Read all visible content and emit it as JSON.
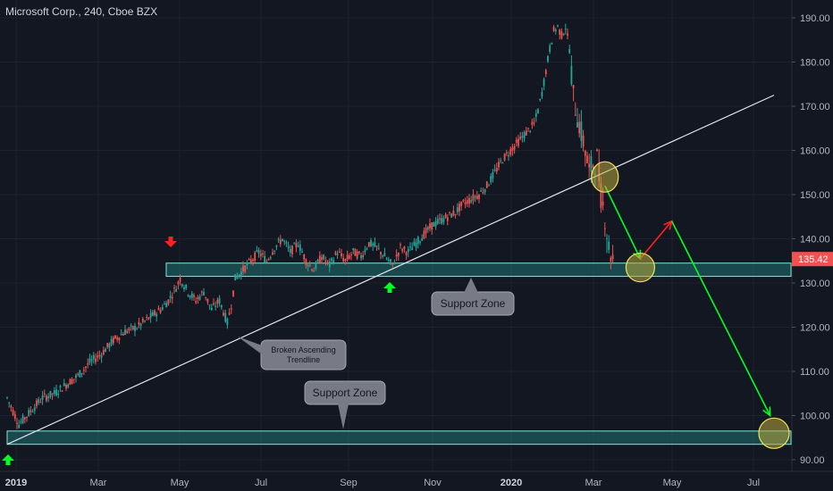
{
  "chart_data": {
    "type": "candlestick",
    "title": "Microsoft Corp., 240, Cboe BZX",
    "ylim": [
      87,
      193
    ],
    "y_ticks": [
      90,
      100,
      110,
      120,
      130,
      140,
      150,
      160,
      170,
      180,
      190
    ],
    "y_tick_labels": [
      "90.00",
      "100.00",
      "110.00",
      "120.00",
      "130.00",
      "140.00",
      "150.00",
      "160.00",
      "170.00",
      "180.00",
      "190.00"
    ],
    "x_ticks": [
      {
        "label": "2019",
        "bold": true
      },
      {
        "label": "Mar",
        "bold": false
      },
      {
        "label": "May",
        "bold": false
      },
      {
        "label": "Jul",
        "bold": false
      },
      {
        "label": "Sep",
        "bold": false
      },
      {
        "label": "Nov",
        "bold": false
      },
      {
        "label": "2020",
        "bold": true
      },
      {
        "label": "Mar",
        "bold": false
      },
      {
        "label": "May",
        "bold": false
      },
      {
        "label": "Jul",
        "bold": false
      }
    ],
    "last_price": 135.42,
    "last_price_label": "135.42",
    "price_path": [
      [
        0,
        104
      ],
      [
        3,
        98
      ],
      [
        6,
        101
      ],
      [
        9,
        104
      ],
      [
        12,
        105
      ],
      [
        15,
        107
      ],
      [
        18,
        109
      ],
      [
        21,
        112
      ],
      [
        24,
        114
      ],
      [
        27,
        117
      ],
      [
        30,
        119
      ],
      [
        33,
        120
      ],
      [
        36,
        122
      ],
      [
        39,
        124
      ],
      [
        41,
        126
      ],
      [
        43,
        129
      ],
      [
        44,
        131
      ],
      [
        46,
        128
      ],
      [
        48,
        126
      ],
      [
        50,
        128
      ],
      [
        52,
        124
      ],
      [
        54,
        126
      ],
      [
        56,
        121
      ],
      [
        57,
        125
      ],
      [
        58,
        131
      ],
      [
        60,
        133
      ],
      [
        62,
        135
      ],
      [
        64,
        137
      ],
      [
        66,
        135
      ],
      [
        68,
        138
      ],
      [
        70,
        140
      ],
      [
        72,
        137
      ],
      [
        74,
        139
      ],
      [
        76,
        135
      ],
      [
        78,
        133
      ],
      [
        80,
        136
      ],
      [
        82,
        134
      ],
      [
        84,
        137
      ],
      [
        86,
        135
      ],
      [
        88,
        137
      ],
      [
        90,
        136
      ],
      [
        92,
        139
      ],
      [
        94,
        138
      ],
      [
        96,
        136
      ],
      [
        98,
        134
      ],
      [
        100,
        138
      ],
      [
        102,
        137
      ],
      [
        104,
        139
      ],
      [
        106,
        141
      ],
      [
        108,
        143
      ],
      [
        110,
        144
      ],
      [
        112,
        145
      ],
      [
        114,
        146
      ],
      [
        116,
        148
      ],
      [
        118,
        149
      ],
      [
        120,
        150
      ],
      [
        122,
        152
      ],
      [
        124,
        155
      ],
      [
        126,
        158
      ],
      [
        128,
        160
      ],
      [
        130,
        162
      ],
      [
        132,
        164
      ],
      [
        134,
        166
      ],
      [
        135,
        169
      ],
      [
        136,
        173
      ],
      [
        137,
        178
      ],
      [
        138,
        183
      ],
      [
        139,
        187
      ],
      [
        140,
        188
      ],
      [
        141,
        186
      ],
      [
        142,
        188
      ],
      [
        143,
        183
      ],
      [
        144,
        172
      ],
      [
        145,
        168
      ],
      [
        146,
        164
      ],
      [
        147,
        160
      ],
      [
        148,
        155
      ],
      [
        149,
        157
      ],
      [
        150,
        158
      ],
      [
        151,
        150
      ],
      [
        152,
        145
      ],
      [
        153,
        138
      ],
      [
        154,
        135.42
      ]
    ],
    "trendline": [
      [
        0,
        93.5
      ],
      [
        195,
        172.5
      ]
    ],
    "support_zones": [
      {
        "y_low": 131.5,
        "y_high": 134.5,
        "label": "Support Zone"
      },
      {
        "y_low": 93.5,
        "y_high": 96.5,
        "label": "Support Zone"
      }
    ],
    "trendline_label": "Broken Ascending Trendline",
    "circled_points": [
      [
        152,
        154
      ],
      [
        161,
        133.5
      ],
      [
        195,
        96
      ]
    ],
    "projection_green": [
      [
        152,
        152
      ],
      [
        161,
        135.5
      ]
    ],
    "projection_red": [
      [
        161,
        135.5
      ],
      [
        169,
        144
      ]
    ],
    "projection_long": [
      [
        169,
        144
      ],
      [
        194,
        100
      ]
    ],
    "marker_down": [
      43,
      141
    ],
    "marker_up_1": [
      97,
      129
    ],
    "marker_up_2": [
      0,
      89.5
    ]
  },
  "colors": {
    "background": "#131722",
    "up": "#26a69a",
    "down": "#ef5350",
    "zone_fill": "#26a69a",
    "zone_border": "#7ee8d6",
    "trendline": "#e0e3eb",
    "green_arrow": "#00ff22",
    "red_arrow": "#ff2020",
    "circle_stroke": "#f2e15c",
    "circle_fill": "#b8a73c",
    "callout_bg": "#787b86",
    "price_tag": "#ef5350"
  }
}
